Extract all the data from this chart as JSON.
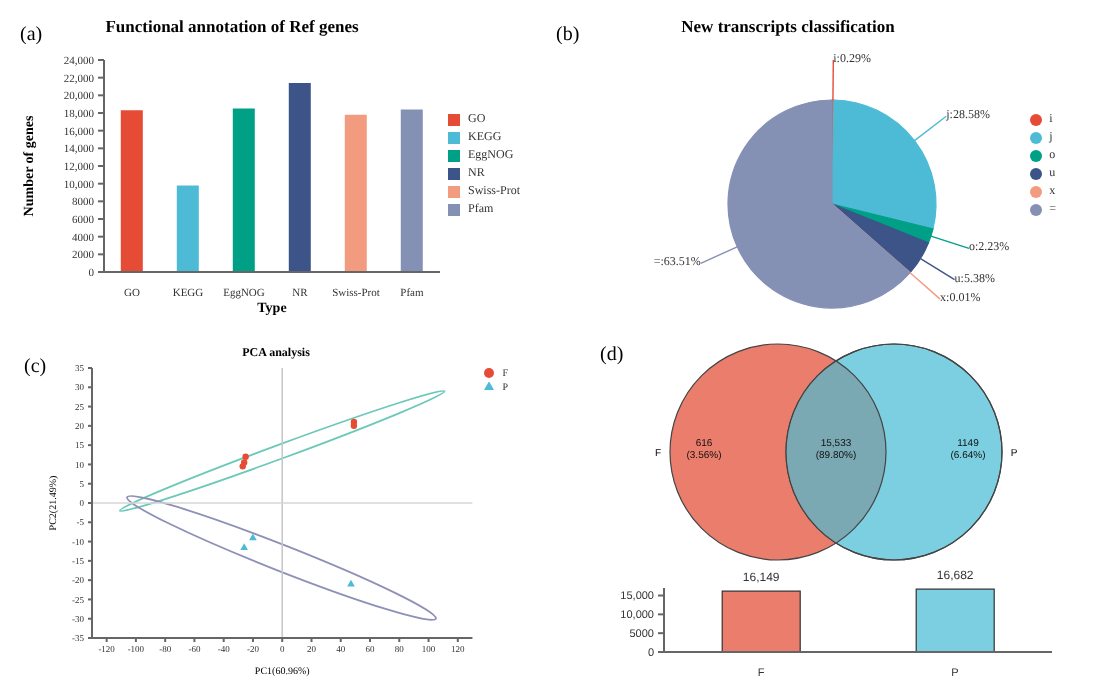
{
  "chart_data": [
    {
      "type": "bar",
      "title": "Functional annotation of Ref genes",
      "xlabel": "Type",
      "ylabel": "Number of genes",
      "annotations": [
        "(a)"
      ],
      "categories": [
        "GO",
        "KEGG",
        "EggNOG",
        "NR",
        "Swiss-Prot",
        "Pfam"
      ],
      "stacked": true,
      "series": [
        {
          "name": "GO",
          "color": "#e64b35",
          "values": [
            18300,
            null,
            null,
            null,
            null,
            null
          ]
        },
        {
          "name": "KEGG",
          "color": "#4dbbd5",
          "values": [
            null,
            9800,
            null,
            null,
            null,
            null
          ]
        },
        {
          "name": "EggNOG",
          "color": "#00a087",
          "values": [
            null,
            null,
            18500,
            null,
            null,
            null
          ]
        },
        {
          "name": "NR",
          "color": "#3c5488",
          "values": [
            null,
            null,
            null,
            21400,
            null,
            null
          ]
        },
        {
          "name": "Swiss-Prot",
          "color": "#f39b7f",
          "values": [
            null,
            null,
            null,
            null,
            17800,
            null
          ]
        },
        {
          "name": "Pfam",
          "color": "#8491b4",
          "values": [
            null,
            null,
            null,
            null,
            null,
            18400
          ]
        }
      ],
      "ylim": [
        0,
        24000
      ],
      "yticks": [
        0,
        2000,
        4000,
        6000,
        8000,
        {
          "value": 10000,
          "label": "10,000"
        },
        {
          "value": 12000,
          "label": "12,000"
        },
        {
          "value": 14000,
          "label": "14,000"
        },
        {
          "value": 16000,
          "label": "16,000"
        },
        {
          "value": 18000,
          "label": "18,000"
        },
        {
          "value": 20000,
          "label": "20,000"
        },
        {
          "value": 22000,
          "label": "22,000"
        },
        {
          "value": 24000,
          "label": "24,000"
        }
      ],
      "legend": "right"
    },
    {
      "type": "pie",
      "title": "New transcripts classification",
      "annotations": [
        "(b)"
      ],
      "categories": [
        "i",
        "j",
        "o",
        "u",
        "x",
        "="
      ],
      "values": [
        0.29,
        28.58,
        2.23,
        5.38,
        0.01,
        63.51
      ],
      "value_labels": [
        "i:0.29%",
        "j:28.58%",
        "o:2.23%",
        "u:5.38%",
        "x:0.01%",
        "=:63.51%"
      ],
      "colors": [
        "#e64b35",
        "#4dbbd5",
        "#00a087",
        "#3c5488",
        "#f39b7f",
        "#8491b4"
      ],
      "legend": "right"
    },
    {
      "type": "scatter",
      "title": "PCA analysis",
      "xlabel": "PC1(60.96%)",
      "ylabel": "PC2(21.49%)",
      "annotations": [
        "(c)"
      ],
      "series": [
        {
          "name": "F",
          "color": "#e64b35",
          "marker": "circle",
          "x": [
            -27,
            -26,
            -25,
            49,
            49
          ],
          "values": [
            9.5,
            10.5,
            12,
            21,
            20
          ]
        },
        {
          "name": "P",
          "color": "#4dbbd5",
          "marker": "triangle",
          "x": [
            -20,
            -26,
            47
          ],
          "values": [
            -9,
            -11.5,
            -21
          ]
        }
      ],
      "xlim": [
        -130,
        130
      ],
      "xticks": [
        -120,
        -100,
        -80,
        -60,
        -40,
        -20,
        0,
        20,
        40,
        60,
        80,
        100,
        120
      ],
      "ylim": [
        -35,
        35
      ],
      "yticks": [
        -35,
        -30,
        -25,
        -20,
        -15,
        -10,
        -5,
        0,
        5,
        10,
        15,
        20,
        25,
        30,
        35
      ],
      "ref_lines": [
        {
          "axis": "x",
          "value": 0,
          "color": "#c8c8c8"
        },
        {
          "axis": "y",
          "value": 0,
          "color": "#d6d6d6"
        }
      ],
      "legend": "top right"
    },
    {
      "type": "other",
      "annotations": [
        "(d)"
      ],
      "categories": [
        "F",
        null,
        "P"
      ],
      "values": [
        616,
        15533,
        1149
      ],
      "value_labels": [
        "616 (3.56%)",
        "15,533 (89.80%)",
        "1149 (6.64%)"
      ],
      "colors": [
        "#ea7d6c",
        "#7aa9b3",
        "#7ccfe0"
      ]
    },
    {
      "type": "bar",
      "categories": [
        "F",
        "P"
      ],
      "values": [
        16149,
        16682
      ],
      "value_labels": [
        "16,149",
        "16,682"
      ],
      "colors": [
        "#ea7d6c",
        "#7ccfe0"
      ],
      "ylim": [
        0,
        17000
      ],
      "yticks": [
        0,
        5000,
        {
          "value": 10000,
          "label": "10,000"
        },
        {
          "value": 15000,
          "label": "15,000"
        }
      ]
    }
  ]
}
